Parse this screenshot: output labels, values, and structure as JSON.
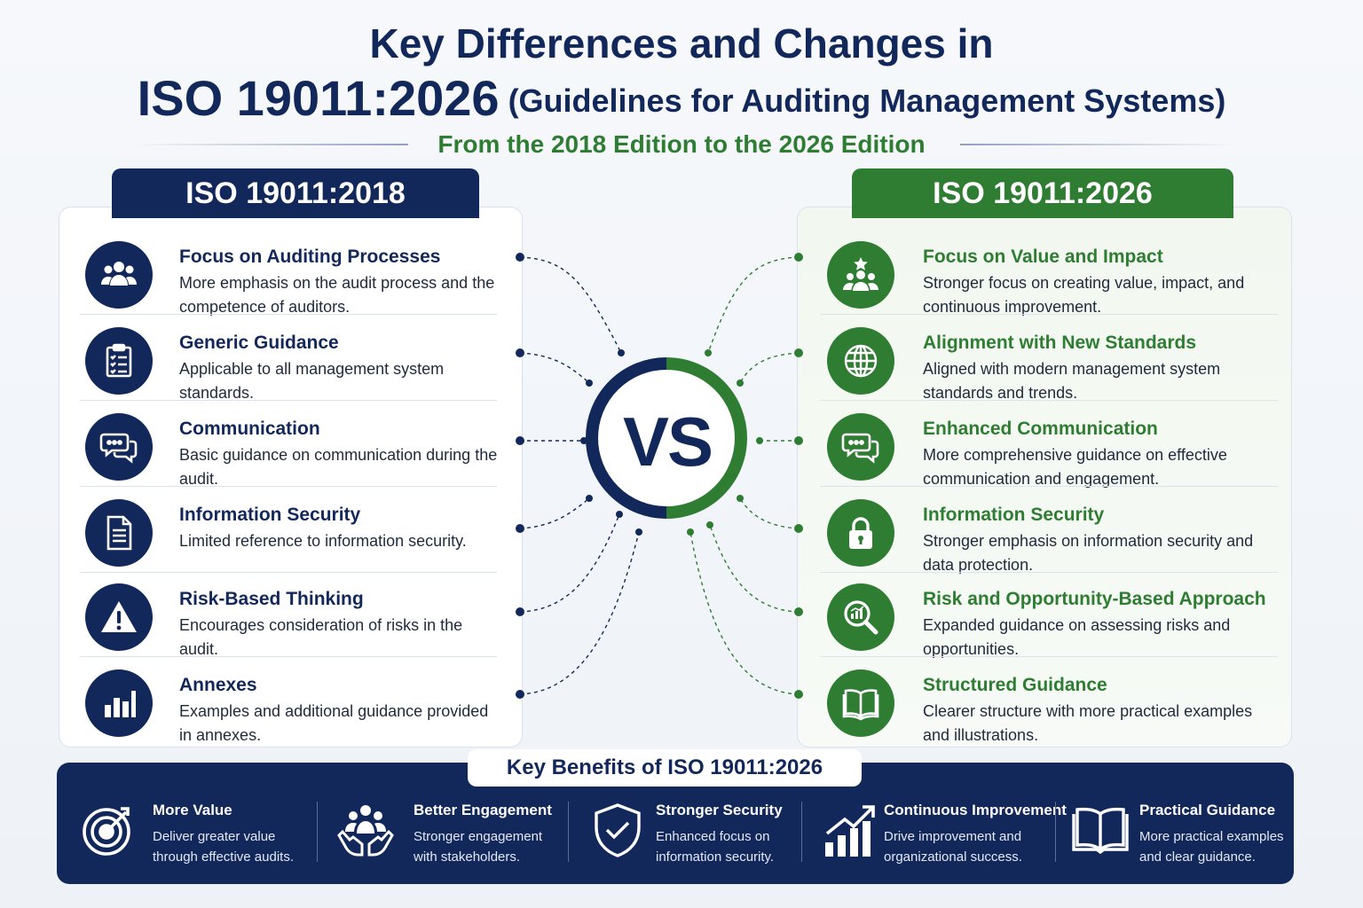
{
  "header": {
    "title_line1": "Key Differences and Changes in",
    "title_code": "ISO 19011:2026",
    "title_rest": "(Guidelines for Auditing Management Systems)",
    "subtitle": "From the 2018 Edition to the 2026 Edition"
  },
  "left": {
    "tab": "ISO 19011:2018",
    "items": [
      {
        "title": "Focus on Auditing Processes",
        "desc": "More emphasis on the audit process and the competence of auditors.",
        "icon": "people-group-icon"
      },
      {
        "title": "Generic Guidance",
        "desc": "Applicable to all management system standards.",
        "icon": "clipboard-checklist-icon"
      },
      {
        "title": "Communication",
        "desc": "Basic guidance on communication during the audit.",
        "icon": "chat-bubbles-icon"
      },
      {
        "title": "Information Security",
        "desc": "Limited reference to information security.",
        "icon": "document-icon"
      },
      {
        "title": "Risk-Based Thinking",
        "desc": "Encourages consideration of risks in the audit.",
        "icon": "warning-triangle-icon"
      },
      {
        "title": "Annexes",
        "desc": "Examples and additional guidance provided in annexes.",
        "icon": "bar-chart-icon"
      }
    ]
  },
  "right": {
    "tab": "ISO 19011:2026",
    "items": [
      {
        "title": "Focus on Value and Impact",
        "desc": "Stronger focus on creating value, impact, and continuous improvement.",
        "icon": "team-star-icon"
      },
      {
        "title": "Alignment with New Standards",
        "desc": "Aligned with modern management system standards and trends.",
        "icon": "globe-icon"
      },
      {
        "title": "Enhanced Communication",
        "desc": "More comprehensive guidance on effective communication and engagement.",
        "icon": "chat-bubbles-icon"
      },
      {
        "title": "Information Security",
        "desc": "Stronger emphasis on information security and data protection.",
        "icon": "padlock-icon"
      },
      {
        "title": "Risk and Opportunity-Based Approach",
        "desc": "Expanded guidance on assessing risks and opportunities.",
        "icon": "magnifier-chart-icon"
      },
      {
        "title": "Structured Guidance",
        "desc": "Clearer structure with more practical examples and illustrations.",
        "icon": "open-book-icon"
      }
    ]
  },
  "vs": "VS",
  "benefits": {
    "label": "Key Benefits of ISO 19011:2026",
    "items": [
      {
        "title": "More Value",
        "desc1": "Deliver greater value",
        "desc2": "through effective audits.",
        "icon": "target-icon"
      },
      {
        "title": "Better Engagement",
        "desc1": "Stronger engagement",
        "desc2": "with stakeholders.",
        "icon": "hands-people-icon"
      },
      {
        "title": "Stronger Security",
        "desc1": "Enhanced focus on",
        "desc2": "information security.",
        "icon": "shield-check-icon"
      },
      {
        "title": "Continuous Improvement",
        "desc1": "Drive improvement and",
        "desc2": "organizational success.",
        "icon": "growth-chart-icon"
      },
      {
        "title": "Practical Guidance",
        "desc1": "More practical examples",
        "desc2": "and clear guidance.",
        "icon": "book-icon"
      }
    ]
  },
  "colors": {
    "navy": "#13285a",
    "green": "#2e7d32"
  }
}
